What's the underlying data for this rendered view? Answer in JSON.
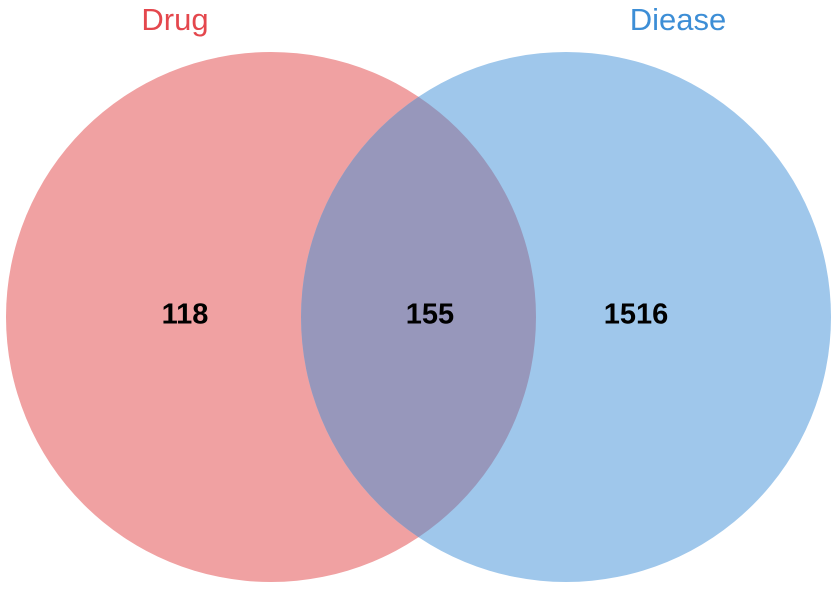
{
  "chart_data": {
    "type": "venn",
    "sets": [
      {
        "name": "Drug",
        "color": "#e4474d",
        "fill": "#f0a1a2"
      },
      {
        "name": "Diease",
        "color": "#3d8ed6",
        "fill": "#9fc7eb"
      }
    ],
    "values": [
      118,
      155,
      1516
    ],
    "overlap_fill": "#9797bb"
  }
}
